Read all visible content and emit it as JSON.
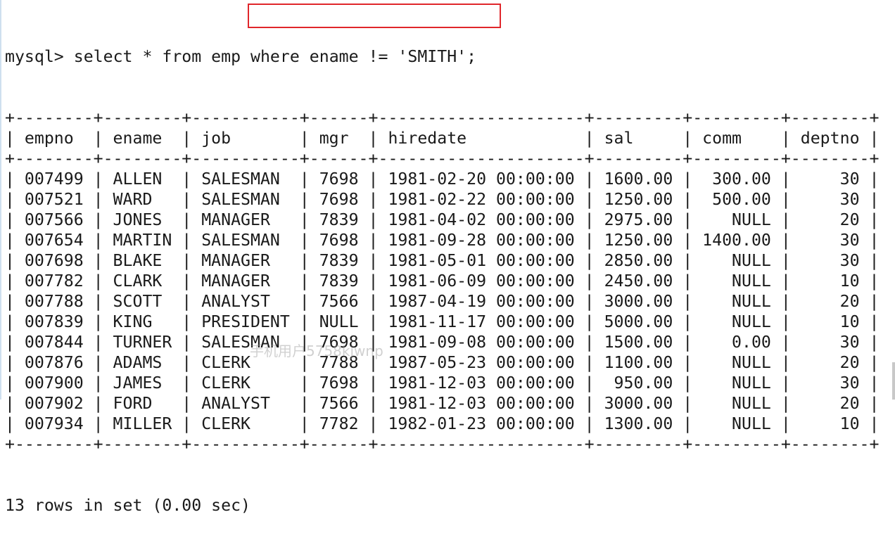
{
  "prompt": "mysql> ",
  "command_prefix": "select * from emp ",
  "command_highlighted": "where ename != 'SMITH';",
  "highlight_color": "#e0262b",
  "columns": [
    "empno",
    "ename",
    "job",
    "mgr",
    "hiredate",
    "sal",
    "comm",
    "deptno"
  ],
  "rows": [
    [
      "007499",
      "ALLEN",
      "SALESMAN",
      "7698",
      "1981-02-20 00:00:00",
      "1600.00",
      "300.00",
      "30"
    ],
    [
      "007521",
      "WARD",
      "SALESMAN",
      "7698",
      "1981-02-22 00:00:00",
      "1250.00",
      "500.00",
      "30"
    ],
    [
      "007566",
      "JONES",
      "MANAGER",
      "7839",
      "1981-04-02 00:00:00",
      "2975.00",
      "NULL",
      "20"
    ],
    [
      "007654",
      "MARTIN",
      "SALESMAN",
      "7698",
      "1981-09-28 00:00:00",
      "1250.00",
      "1400.00",
      "30"
    ],
    [
      "007698",
      "BLAKE",
      "MANAGER",
      "7839",
      "1981-05-01 00:00:00",
      "2850.00",
      "NULL",
      "30"
    ],
    [
      "007782",
      "CLARK",
      "MANAGER",
      "7839",
      "1981-06-09 00:00:00",
      "2450.00",
      "NULL",
      "10"
    ],
    [
      "007788",
      "SCOTT",
      "ANALYST",
      "7566",
      "1987-04-19 00:00:00",
      "3000.00",
      "NULL",
      "20"
    ],
    [
      "007839",
      "KING",
      "PRESIDENT",
      "NULL",
      "1981-11-17 00:00:00",
      "5000.00",
      "NULL",
      "10"
    ],
    [
      "007844",
      "TURNER",
      "SALESMAN",
      "7698",
      "1981-09-08 00:00:00",
      "1500.00",
      "0.00",
      "30"
    ],
    [
      "007876",
      "ADAMS",
      "CLERK",
      "7788",
      "1987-05-23 00:00:00",
      "1100.00",
      "NULL",
      "20"
    ],
    [
      "007900",
      "JAMES",
      "CLERK",
      "7698",
      "1981-12-03 00:00:00",
      "950.00",
      "NULL",
      "30"
    ],
    [
      "007902",
      "FORD",
      "ANALYST",
      "7566",
      "1981-12-03 00:00:00",
      "3000.00",
      "NULL",
      "20"
    ],
    [
      "007934",
      "MILLER",
      "CLERK",
      "7782",
      "1982-01-23 00:00:00",
      "1300.00",
      "NULL",
      "10"
    ]
  ],
  "footer": "13 rows in set (0.00 sec)",
  "watermark": "手机用户5758kjwnp"
}
